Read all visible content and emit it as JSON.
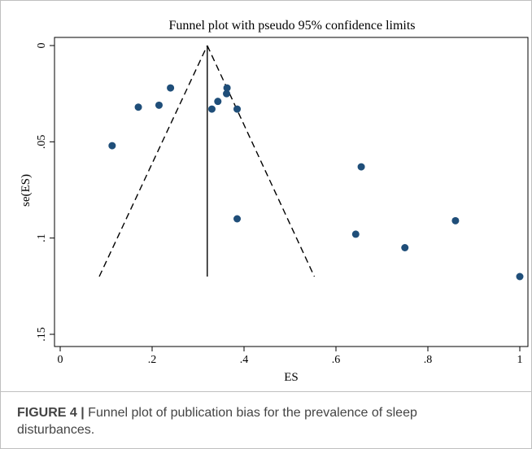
{
  "chart_data": {
    "type": "scatter",
    "title": "Funnel plot with pseudo 95% confidence limits",
    "xlabel": "ES",
    "ylabel": "se(ES)",
    "xlim": [
      0,
      1
    ],
    "ylim": [
      0,
      0.155
    ],
    "y_inverted": true,
    "xticks": [
      0,
      0.2,
      0.4,
      0.6,
      0.8,
      1
    ],
    "xtick_labels": [
      "0",
      ".2",
      ".4",
      ".6",
      ".8",
      "1"
    ],
    "yticks": [
      0,
      0.05,
      0.1,
      0.15
    ],
    "ytick_labels": [
      "0",
      ".05",
      ".1",
      ".15"
    ],
    "grid": false,
    "legend": "none",
    "pooled_estimate": 0.32,
    "confidence_limits": {
      "apex": [
        0.32,
        0
      ],
      "lower_left": [
        0.085,
        0.12
      ],
      "lower_right": [
        0.553,
        0.12
      ]
    },
    "points": [
      {
        "x": 0.113,
        "y": 0.052
      },
      {
        "x": 0.17,
        "y": 0.032
      },
      {
        "x": 0.215,
        "y": 0.031
      },
      {
        "x": 0.24,
        "y": 0.022
      },
      {
        "x": 0.33,
        "y": 0.033
      },
      {
        "x": 0.343,
        "y": 0.029
      },
      {
        "x": 0.362,
        "y": 0.025
      },
      {
        "x": 0.363,
        "y": 0.022
      },
      {
        "x": 0.385,
        "y": 0.033
      },
      {
        "x": 0.385,
        "y": 0.09
      },
      {
        "x": 0.643,
        "y": 0.098
      },
      {
        "x": 0.655,
        "y": 0.063
      },
      {
        "x": 0.75,
        "y": 0.105
      },
      {
        "x": 0.86,
        "y": 0.091
      },
      {
        "x": 1.0,
        "y": 0.12
      }
    ],
    "colors": {
      "marker": "#1f4e79",
      "line": "#000000"
    }
  },
  "caption": {
    "label": "FIGURE 4 |",
    "text": " Funnel plot of publication bias for the prevalence of sleep disturbances."
  }
}
